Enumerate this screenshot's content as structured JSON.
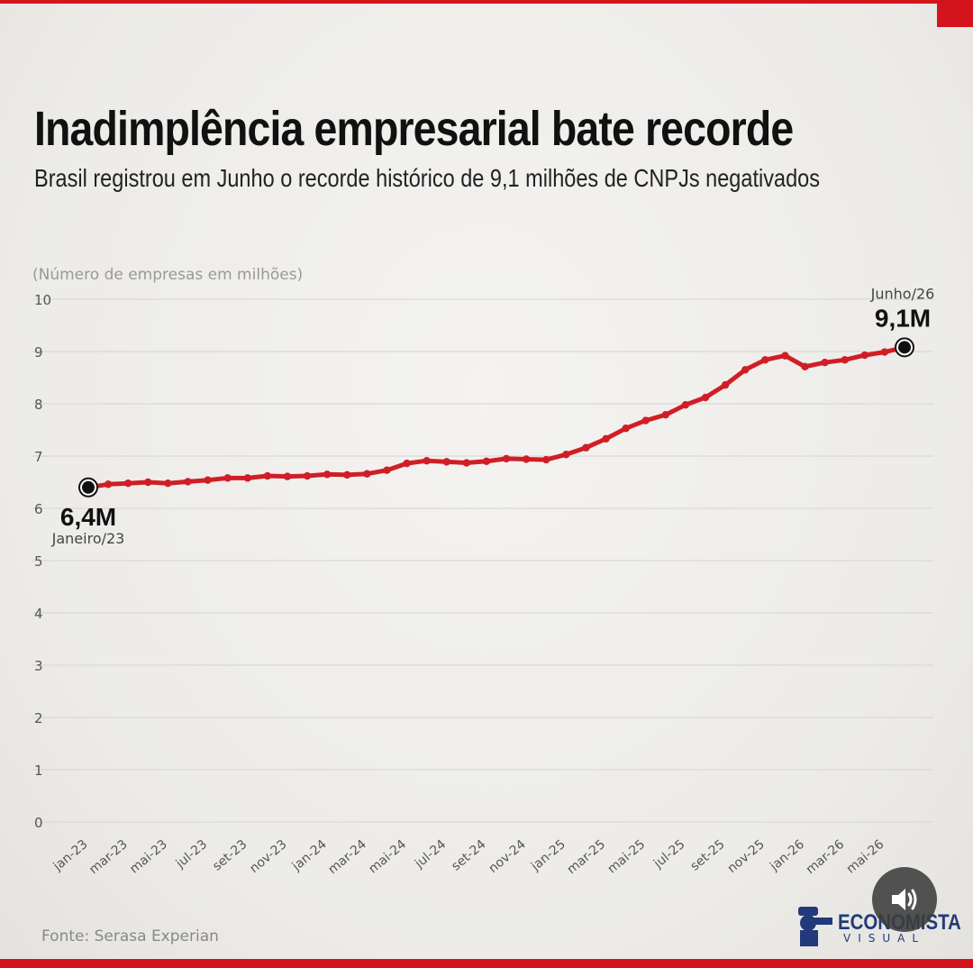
{
  "title": "Inadimplência empresarial bate recorde",
  "subtitle": "Brasil registrou em Junho o recorde histórico de 9,1 milhões de CNPJs negativados",
  "unit_label": "(Número de empresas em milhões)",
  "source": "Fonte: Serasa Experian",
  "logo": {
    "name": "ECONOMISTA",
    "sub": "VISUAL"
  },
  "colors": {
    "accent": "#d4141c",
    "line": "#d01e26",
    "text": "#111111",
    "grid": "#d6d4d0",
    "logo": "#223a7a"
  },
  "icons": {
    "sound": "speaker-icon"
  },
  "annotations": {
    "start": {
      "value": "6,4M",
      "date": "Janeiro/23"
    },
    "end": {
      "value": "9,1M",
      "date": "Junho/26"
    }
  },
  "chart_data": {
    "type": "line",
    "title": "Inadimplência empresarial bate recorde",
    "ylabel": "(Número de empresas em milhões)",
    "ylim": [
      0,
      10
    ],
    "yticks": [
      0,
      1,
      2,
      3,
      4,
      5,
      6,
      7,
      8,
      9,
      10
    ],
    "grid": true,
    "x_tick_labels": [
      "jan-23",
      "mar-23",
      "mai-23",
      "jul-23",
      "set-23",
      "nov-23",
      "jan-24",
      "mar-24",
      "mai-24",
      "jul-24",
      "set-24",
      "nov-24",
      "jan-25",
      "mar-25",
      "mai-25",
      "jul-25",
      "set-25",
      "nov-25",
      "jan-26",
      "mar-26",
      "mai-26"
    ],
    "x": [
      "jan-23",
      "fev-23",
      "mar-23",
      "abr-23",
      "mai-23",
      "jun-23",
      "jul-23",
      "ago-23",
      "set-23",
      "out-23",
      "nov-23",
      "dez-23",
      "jan-24",
      "fev-24",
      "mar-24",
      "abr-24",
      "mai-24",
      "jun-24",
      "jul-24",
      "ago-24",
      "set-24",
      "out-24",
      "nov-24",
      "dez-24",
      "jan-25",
      "fev-25",
      "mar-25",
      "abr-25",
      "mai-25",
      "jun-25",
      "jul-25",
      "ago-25",
      "set-25",
      "out-25",
      "nov-25",
      "dez-25",
      "jan-26",
      "fev-26",
      "mar-26",
      "abr-26",
      "mai-26",
      "jun-26"
    ],
    "series": [
      {
        "values": [
          6.4,
          6.46,
          6.48,
          6.5,
          6.48,
          6.51,
          6.54,
          6.58,
          6.58,
          6.62,
          6.61,
          6.62,
          6.65,
          6.64,
          6.66,
          6.73,
          6.86,
          6.91,
          6.89,
          6.87,
          6.9,
          6.95,
          6.94,
          6.93,
          7.03,
          7.16,
          7.33,
          7.53,
          7.68,
          7.79,
          7.98,
          8.12,
          8.36,
          8.65,
          8.84,
          8.92,
          8.71,
          8.79,
          8.84,
          8.93,
          8.99,
          9.08
        ]
      }
    ]
  }
}
